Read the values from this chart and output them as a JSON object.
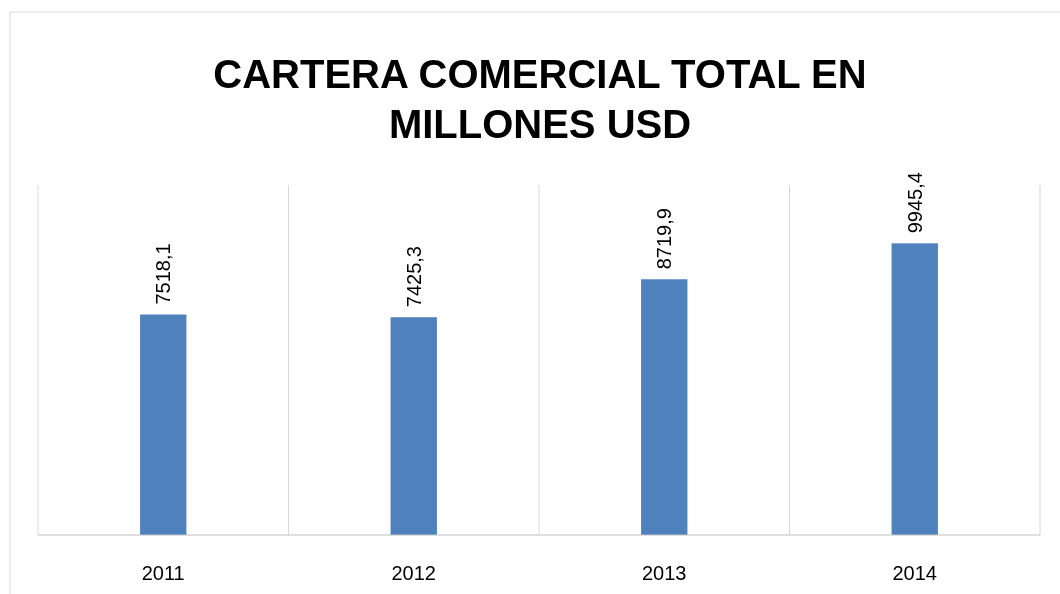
{
  "chart_data": {
    "type": "bar",
    "title": "CARTERA COMERCIAL TOTAL EN MILLONES USD",
    "categories": [
      "2011",
      "2012",
      "2013",
      "2014"
    ],
    "values": [
      7518.1,
      7425.3,
      8719.9,
      9945.4
    ],
    "value_labels": [
      "7518,1",
      "7425,3",
      "8719,9",
      "9945,4"
    ],
    "color": "#4f81bd",
    "grid": "x"
  }
}
